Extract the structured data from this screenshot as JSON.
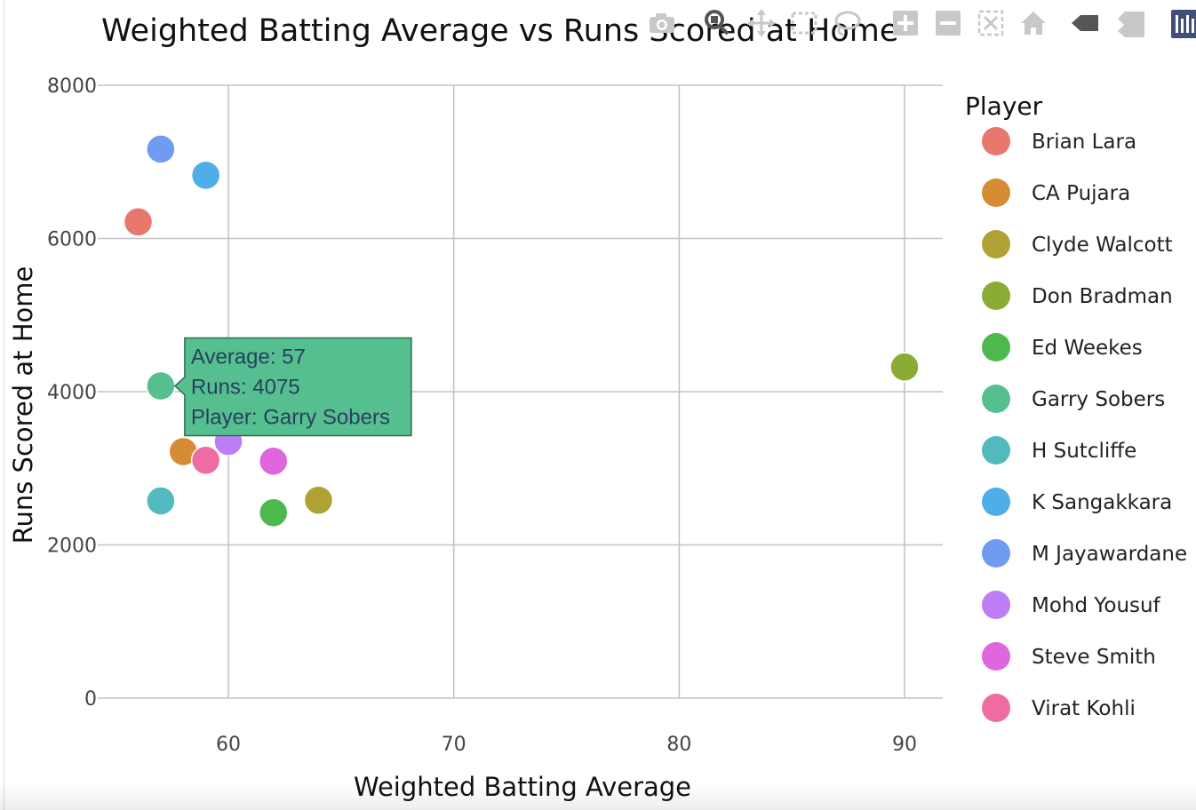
{
  "chart_data": {
    "type": "scatter",
    "title": "Weighted Batting Average vs Runs Scored at Home",
    "xlabel": "Weighted Batting Average",
    "ylabel": "Runs Scored at Home",
    "xlim": [
      55,
      92
    ],
    "ylim": [
      -250,
      8250
    ],
    "x_ticks": [
      60,
      70,
      80,
      90
    ],
    "y_ticks": [
      0,
      2000,
      4000,
      6000,
      8000
    ],
    "grid": true,
    "legend_title": "Player",
    "legend_position": "right",
    "series": [
      {
        "name": "Brian Lara",
        "color": "#E8776D",
        "points": [
          {
            "x": 56,
            "y": 6217
          }
        ]
      },
      {
        "name": "CA Pujara",
        "color": "#D68C33",
        "points": [
          {
            "x": 58,
            "y": 3218
          }
        ]
      },
      {
        "name": "Clyde Walcott",
        "color": "#B0A134",
        "points": [
          {
            "x": 64,
            "y": 2583
          }
        ]
      },
      {
        "name": "Don Bradman",
        "color": "#8BAC34",
        "points": [
          {
            "x": 90,
            "y": 4322
          }
        ]
      },
      {
        "name": "Ed Weekes",
        "color": "#4DB94D",
        "points": [
          {
            "x": 62,
            "y": 2420
          }
        ]
      },
      {
        "name": "Garry Sobers",
        "color": "#55BF90",
        "points": [
          {
            "x": 57,
            "y": 4075
          }
        ]
      },
      {
        "name": "H Sutcliffe",
        "color": "#52BABF",
        "points": [
          {
            "x": 57,
            "y": 2574
          }
        ]
      },
      {
        "name": "K Sangakkara",
        "color": "#4FAEE8",
        "points": [
          {
            "x": 59,
            "y": 6825
          }
        ]
      },
      {
        "name": "M Jayawardane",
        "color": "#6F9CF1",
        "points": [
          {
            "x": 57,
            "y": 7167
          }
        ]
      },
      {
        "name": "Mohd Yousuf",
        "color": "#BC7DF5",
        "points": [
          {
            "x": 60,
            "y": 3350
          }
        ]
      },
      {
        "name": "Steve Smith",
        "color": "#E066DF",
        "points": [
          {
            "x": 62,
            "y": 3093
          }
        ]
      },
      {
        "name": "Virat Kohli",
        "color": "#EE6CA2",
        "points": [
          {
            "x": 59,
            "y": 3105
          }
        ]
      }
    ],
    "hover": {
      "series_index": 5,
      "lines": [
        "Average: 57",
        "Runs: 4075",
        "Player: Garry Sobers"
      ],
      "fill": "#55BF90",
      "border": "#2F6B50",
      "text_color": "#2a3f5f"
    }
  },
  "modebar": {
    "icons": [
      "camera-icon",
      "zoom-icon",
      "pan-icon",
      "box-select-icon",
      "lasso-select-icon",
      "zoom-in-icon",
      "zoom-out-icon",
      "autoscale-icon",
      "reset-axes-icon",
      "spike-lines-icon",
      "compare-hover-icon",
      "plotly-logo-icon"
    ],
    "icon_color": "#c8c8c8",
    "logo_color": "#3f4f75"
  }
}
